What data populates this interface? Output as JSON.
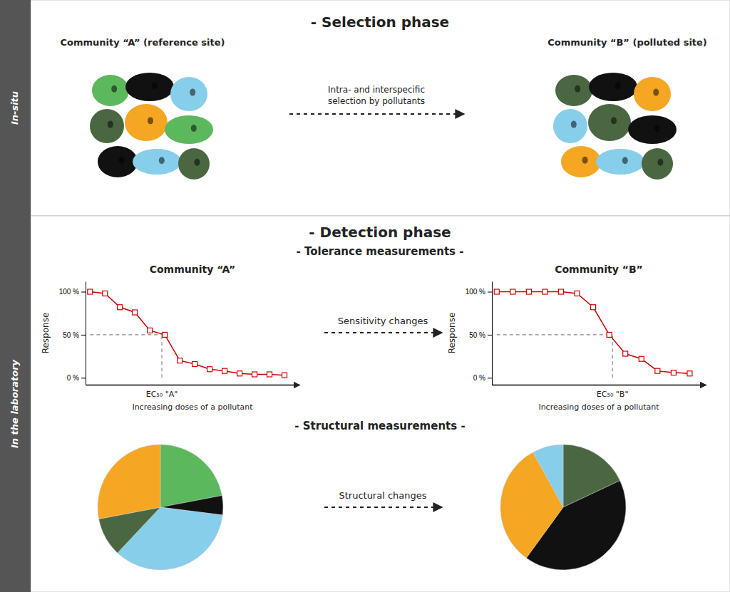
{
  "chart_data": [
    {
      "type": "diagram",
      "title": "- Selection phase",
      "annotations": [
        {
          "text": "In-situ"
        },
        {
          "text": "Community “A” (reference site)"
        },
        {
          "text": "Community “B” (polluted site)"
        },
        {
          "text": "Intra- and interspecific"
        },
        {
          "text": "selection by pollutants"
        }
      ]
    },
    {
      "type": "diagram",
      "title": "- Detection phase",
      "annotations": [
        {
          "text": "In the laboratory"
        },
        {
          "text": "- Tolerance measurements -"
        },
        {
          "text": "Sensitivity changes"
        },
        {
          "text": "- Structural measurements -"
        },
        {
          "text": "Structural changes"
        }
      ]
    },
    {
      "type": "line",
      "title": "Community “A”",
      "xlabel": "Increasing doses of a pollutant",
      "ylabel": "Response",
      "x": [
        0,
        1,
        2,
        3,
        4,
        5,
        6,
        7,
        8,
        9,
        10,
        11,
        12,
        13
      ],
      "values": [
        100,
        98,
        82,
        76,
        55,
        50,
        20,
        16,
        10,
        8,
        5,
        4,
        4,
        3
      ],
      "color": "#cc0000",
      "marker": "square",
      "xlim": [
        -0.3,
        14
      ],
      "ylim": [
        -8,
        112
      ],
      "xticks": [],
      "yticks": [
        {
          "value": 0,
          "label": "0 %"
        },
        {
          "value": 50,
          "label": "50 %"
        },
        {
          "value": 100,
          "label": "100 %"
        }
      ],
      "tick_labels": "y",
      "annotations": [
        {
          "text": "EC₅₀ \"A\"",
          "x": 4.8,
          "y": 50,
          "color": "#888888"
        }
      ]
    },
    {
      "type": "line",
      "title": "Community “B”",
      "xlabel": "Increasing doses of a pollutant",
      "ylabel": "Response",
      "x": [
        0,
        1,
        2,
        3,
        4,
        5,
        6,
        7,
        8,
        9,
        10,
        11,
        12
      ],
      "values": [
        100,
        100,
        100,
        100,
        100,
        98,
        82,
        50,
        28,
        22,
        8,
        6,
        5
      ],
      "color": "#cc0000",
      "marker": "square",
      "xlim": [
        -0.3,
        13
      ],
      "ylim": [
        -8,
        112
      ],
      "xticks": [],
      "yticks": [
        {
          "value": 0,
          "label": "0 %"
        },
        {
          "value": 50,
          "label": "50 %"
        },
        {
          "value": 100,
          "label": "100 %"
        }
      ],
      "tick_labels": "y",
      "annotations": [
        {
          "text": "EC₅₀ \"B\"",
          "x": 7.2,
          "y": 50,
          "color": "#888888"
        }
      ]
    },
    {
      "type": "pie",
      "values": [
        22,
        5,
        35,
        10,
        28
      ],
      "colors": [
        "#5cb85c",
        "#111111",
        "#87ceeb",
        "#4a6741",
        "#f5a623"
      ]
    },
    {
      "type": "pie",
      "values": [
        18,
        42,
        32,
        8
      ],
      "colors": [
        "#4a6741",
        "#111111",
        "#f5a623",
        "#87ceeb"
      ]
    }
  ]
}
